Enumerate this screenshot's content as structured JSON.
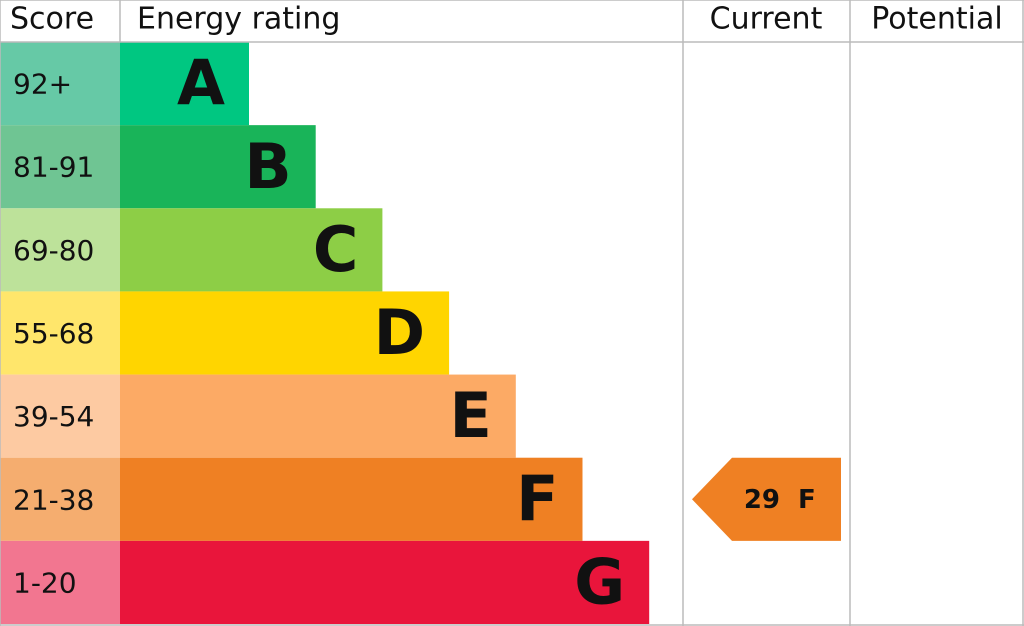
{
  "header": {
    "score": "Score",
    "rating": "Energy rating",
    "current": "Current",
    "potential": "Potential"
  },
  "bands": [
    {
      "score": "92+",
      "letter": "A",
      "color": "#00c781",
      "score_color": "#66c9a6"
    },
    {
      "score": "81-91",
      "letter": "B",
      "color": "#19b459",
      "score_color": "#6fc593"
    },
    {
      "score": "69-80",
      "letter": "C",
      "color": "#8dce46",
      "score_color": "#bde29a"
    },
    {
      "score": "55-68",
      "letter": "D",
      "color": "#ffd500",
      "score_color": "#ffe66b"
    },
    {
      "score": "39-54",
      "letter": "E",
      "color": "#fcaa65",
      "score_color": "#fdcaa2"
    },
    {
      "score": "21-38",
      "letter": "F",
      "color": "#ef8023",
      "score_color": "#f5ad6f"
    },
    {
      "score": "1-20",
      "letter": "G",
      "color": "#e9153b",
      "score_color": "#f27690"
    }
  ],
  "current": {
    "value": 29,
    "letter": "F"
  }
}
